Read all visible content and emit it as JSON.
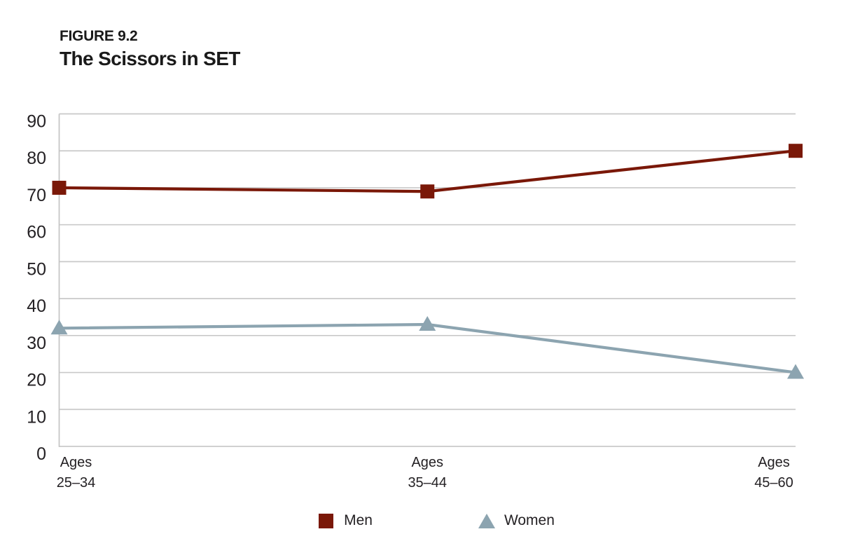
{
  "chart_data": {
    "type": "line",
    "figure_label": "FIGURE 9.2",
    "title": "The Scissors in SET",
    "categories": [
      "Ages 25–34",
      "Ages 35–44",
      "Ages 45–60"
    ],
    "series": [
      {
        "name": "Men",
        "marker": "square",
        "color": "#7A1808",
        "values": [
          70,
          69,
          80
        ]
      },
      {
        "name": "Women",
        "marker": "triangle",
        "color": "#8CA4B0",
        "values": [
          32,
          33,
          20
        ]
      }
    ],
    "ylim": [
      0,
      90
    ],
    "yticks": [
      0,
      10,
      20,
      30,
      40,
      50,
      60,
      70,
      80,
      90
    ],
    "grid": "horizontal-only",
    "legend_position": "bottom"
  },
  "style": {
    "background": "#FFFFFF",
    "grid_color": "#C9C9C9",
    "axis_color": "#C4C4C4",
    "text_color": "#242124",
    "men_color": "#7A1808",
    "women_color": "#8CA4B0"
  }
}
